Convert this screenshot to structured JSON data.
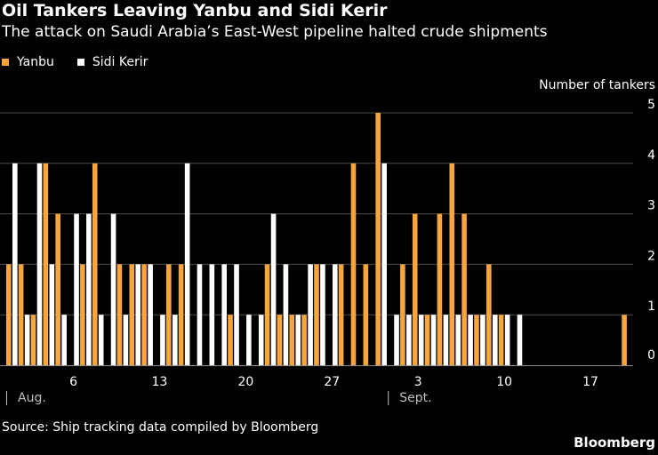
{
  "title": "Oil Tankers Leaving Yanbu and Sidi Kerir",
  "subtitle": "The attack on Saudi Arabia’s East-West pipeline halted crude shipments",
  "source": "Source: Ship tracking data compiled by Bloomberg",
  "brand": "Bloomberg",
  "colors": {
    "background": "#000000",
    "yanbu": "#f7a53c",
    "sidi_kerir": "#ffffff",
    "grid": "#4d4d4d",
    "text": "#ffffff"
  },
  "chart_data": {
    "type": "bar",
    "title": "Oil Tankers Leaving Yanbu and Sidi Kerir",
    "subtitle": "The attack on Saudi Arabia’s East-West pipeline halted crude shipments",
    "ylabel": "Number of tankers",
    "ylim": [
      0,
      5
    ],
    "yticks": [
      0,
      1,
      2,
      3,
      4,
      5
    ],
    "grid": true,
    "legend_position": "top-left",
    "x_start": "Aug. 1",
    "x_end": "Sept. 21",
    "x_tick_labels": [
      "6",
      "13",
      "20",
      "27",
      "3",
      "10",
      "17"
    ],
    "x_tick_dates": [
      "Aug. 6",
      "Aug. 13",
      "Aug. 20",
      "Aug. 27",
      "Sept. 3",
      "Sept. 10",
      "Sept. 17"
    ],
    "month_labels": [
      {
        "label": "Aug.",
        "date": "Aug. 1"
      },
      {
        "label": "Sept.",
        "date": "Sept. 1"
      }
    ],
    "x": [
      "Aug. 1",
      "Aug. 2",
      "Aug. 3",
      "Aug. 4",
      "Aug. 5",
      "Aug. 6",
      "Aug. 7",
      "Aug. 8",
      "Aug. 9",
      "Aug. 10",
      "Aug. 11",
      "Aug. 12",
      "Aug. 13",
      "Aug. 14",
      "Aug. 15",
      "Aug. 16",
      "Aug. 17",
      "Aug. 18",
      "Aug. 19",
      "Aug. 20",
      "Aug. 21",
      "Aug. 22",
      "Aug. 23",
      "Aug. 24",
      "Aug. 25",
      "Aug. 26",
      "Aug. 27",
      "Aug. 28",
      "Aug. 29",
      "Aug. 30",
      "Aug. 31",
      "Sept. 1",
      "Sept. 2",
      "Sept. 3",
      "Sept. 4",
      "Sept. 5",
      "Sept. 6",
      "Sept. 7",
      "Sept. 8",
      "Sept. 9",
      "Sept. 10",
      "Sept. 11",
      "Sept. 12",
      "Sept. 13",
      "Sept. 14",
      "Sept. 15",
      "Sept. 16",
      "Sept. 17",
      "Sept. 18",
      "Sept. 19",
      "Sept. 20",
      "Sept. 21"
    ],
    "series": [
      {
        "name": "Yanbu",
        "color": "#f7a53c",
        "values": [
          2,
          2,
          1,
          4,
          3,
          0,
          2,
          4,
          0,
          2,
          2,
          2,
          0,
          2,
          2,
          0,
          0,
          0,
          1,
          0,
          0,
          2,
          1,
          1,
          1,
          2,
          0,
          2,
          4,
          2,
          5,
          0,
          2,
          3,
          1,
          3,
          4,
          3,
          1,
          2,
          1,
          0,
          0,
          0,
          0,
          0,
          0,
          0,
          0,
          0,
          1,
          0
        ]
      },
      {
        "name": "Sidi Kerir",
        "color": "#ffffff",
        "values": [
          4,
          1,
          4,
          2,
          1,
          3,
          3,
          1,
          3,
          1,
          2,
          2,
          1,
          1,
          4,
          2,
          2,
          2,
          2,
          1,
          1,
          3,
          2,
          1,
          2,
          2,
          2,
          0,
          0,
          0,
          4,
          1,
          1,
          1,
          1,
          1,
          1,
          1,
          1,
          1,
          1,
          1,
          0,
          0,
          0,
          0,
          0,
          0,
          0,
          0,
          0,
          0
        ]
      }
    ]
  }
}
